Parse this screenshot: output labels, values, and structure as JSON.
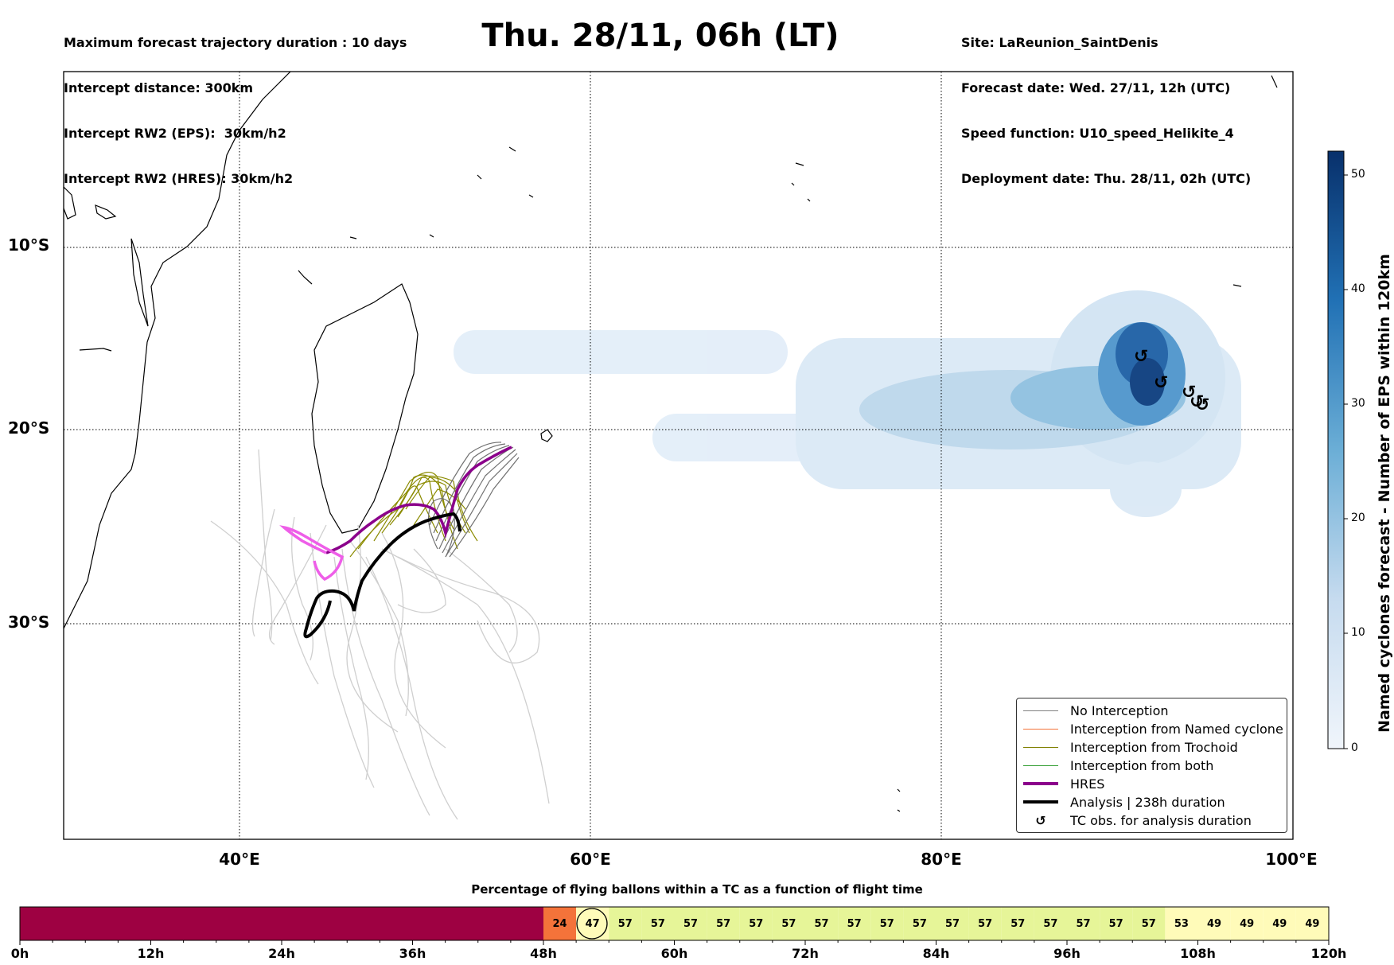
{
  "header_left": [
    "Maximum forecast trajectory duration : 10 days",
    "Intercept distance: 300km",
    "Intercept RW2 (EPS):  30km/h2",
    "Intercept RW2 (HRES): 30km/h2"
  ],
  "title": "Thu. 28/11, 06h (LT)",
  "header_right": [
    "Site: LaReunion_SaintDenis",
    "Forecast date: Wed. 27/11, 12h (UTC)",
    "Speed function: U10_speed_Helikite_4",
    "Deployment date: Thu. 28/11, 02h (UTC)"
  ],
  "map": {
    "lon_labels": [
      "40°E",
      "60°E",
      "80°E",
      "100°E"
    ],
    "lat_labels": [
      "10°S",
      "20°S",
      "30°S"
    ]
  },
  "legend": [
    {
      "label": "No Interception",
      "color": "#808080",
      "style": "thin"
    },
    {
      "label": "Interception from Named cyclone",
      "color": "#f4733a",
      "style": "thin"
    },
    {
      "label": "Interception from Trochoid",
      "color": "#808000",
      "style": "thin"
    },
    {
      "label": "Interception from both",
      "color": "#2e9c2e",
      "style": "thin"
    },
    {
      "label": "HRES",
      "color": "#8b008b",
      "style": "thick"
    },
    {
      "label": "Analysis | 238h duration",
      "color": "#000000",
      "style": "thick"
    },
    {
      "label": "TC obs. for analysis duration",
      "color": "#000000",
      "style": "marker"
    }
  ],
  "colorbar": {
    "label": "Named cyclones forecast - Number of EPS within 120km",
    "ticks": [
      "0",
      "10",
      "20",
      "30",
      "40",
      "50"
    ],
    "color_low": "#f0f5fb",
    "color_high": "#08306b"
  },
  "timeline": {
    "title": "Percentage of flying ballons within a TC as a function of flight time",
    "tick_labels": [
      "0h",
      "12h",
      "24h",
      "36h",
      "48h",
      "60h",
      "72h",
      "84h",
      "96h",
      "108h",
      "120h"
    ],
    "cells": [
      "24",
      "47",
      "57",
      "57",
      "57",
      "57",
      "57",
      "57",
      "57",
      "57",
      "57",
      "57",
      "57",
      "57",
      "57",
      "57",
      "57",
      "57",
      "57",
      "53",
      "49",
      "49",
      "49",
      "49"
    ],
    "circled_cell": "47",
    "colors": {
      "no_data": "#9e0142",
      "low": "#f4733a",
      "mid": "#e6f598",
      "high": "#fffbb9"
    }
  }
}
